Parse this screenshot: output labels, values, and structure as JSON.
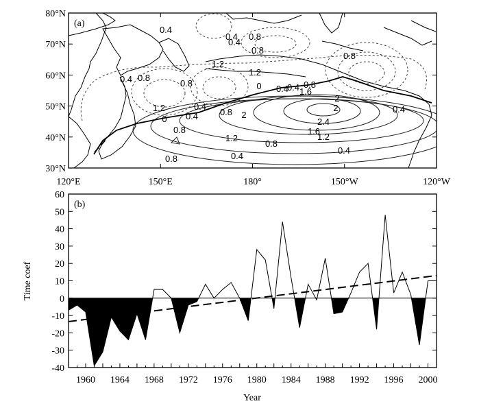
{
  "map_panel": {
    "label": "(a)",
    "lat_ticks": [
      "80°N",
      "70°N",
      "60°N",
      "50°N",
      "40°N",
      "30°N"
    ],
    "lon_ticks": [
      "120°E",
      "150°E",
      "180°",
      "150°W",
      "120°W"
    ],
    "contour_labels": [
      {
        "text": "0.4"
      },
      {
        "text": "0.4"
      },
      {
        "text": "0.8"
      },
      {
        "text": "0.4"
      },
      {
        "text": "0.8"
      },
      {
        "text": "1.2"
      },
      {
        "text": "1.2"
      },
      {
        "text": "0.4"
      },
      {
        "text": "0.8"
      },
      {
        "text": "0.8"
      },
      {
        "text": "0.4"
      },
      {
        "text": "0.8"
      },
      {
        "text": "1.2"
      },
      {
        "text": "0.4"
      },
      {
        "text": "0"
      },
      {
        "text": "0.4"
      },
      {
        "text": "0.8"
      },
      {
        "text": "1.6"
      },
      {
        "text": "2"
      },
      {
        "text": "0"
      },
      {
        "text": "2"
      },
      {
        "text": "0.4"
      },
      {
        "text": "0.8"
      },
      {
        "text": "2.4"
      },
      {
        "text": "1.6"
      },
      {
        "text": "2"
      },
      {
        "text": "0.4"
      },
      {
        "text": "1.2"
      },
      {
        "text": "1.2"
      },
      {
        "text": "0.8"
      },
      {
        "text": "0.8"
      },
      {
        "text": "0.4"
      },
      {
        "text": "0.4"
      },
      {
        "text": "0.8"
      }
    ]
  },
  "chart_data": {
    "type": "area",
    "panel_label": "(b)",
    "xlabel": "Year",
    "ylabel": "Time coef",
    "xlim": [
      1958,
      2001
    ],
    "ylim": [
      -40,
      60
    ],
    "x_ticks": [
      1960,
      1964,
      1968,
      1972,
      1976,
      1980,
      1984,
      1988,
      1992,
      1996,
      2000
    ],
    "y_ticks": [
      60,
      50,
      40,
      30,
      20,
      10,
      0,
      -10,
      -20,
      -30,
      -40
    ],
    "grid": false,
    "fill_negative": "#000000",
    "series": [
      {
        "x": [
          1958,
          1959,
          1960,
          1961,
          1962,
          1963,
          1964,
          1965,
          1966,
          1967,
          1968,
          1969,
          1970,
          1971,
          1972,
          1973,
          1974,
          1975,
          1976,
          1977,
          1978,
          1979,
          1980,
          1981,
          1982,
          1983,
          1984,
          1985,
          1986,
          1987,
          1988,
          1989,
          1990,
          1991,
          1992,
          1993,
          1994,
          1995,
          1996,
          1997,
          1998,
          1999,
          2000,
          2001
        ],
        "values": [
          -7,
          -4,
          -8,
          -39,
          -31,
          -11,
          -19,
          -24,
          -9,
          -24,
          5,
          5,
          0,
          -20,
          -4,
          -2,
          8,
          0,
          5,
          9,
          0,
          -13,
          28,
          22,
          -6,
          44,
          12,
          -17,
          8,
          -1,
          23,
          -9,
          -8,
          3,
          15,
          20,
          -18,
          48,
          3,
          15,
          2,
          -27,
          10,
          10
        ]
      }
    ],
    "trend_line": {
      "style": "dashed",
      "x": [
        1958,
        2001
      ],
      "values": [
        -13.5,
        13
      ]
    }
  }
}
